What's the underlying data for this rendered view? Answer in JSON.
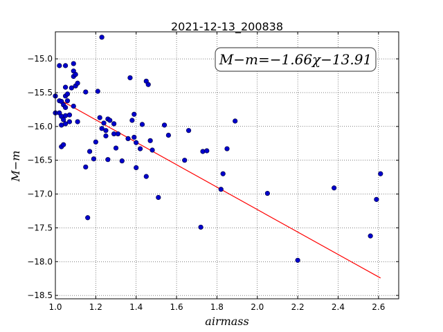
{
  "chart_data": {
    "type": "scatter",
    "title": "2021-12-13_200838",
    "xlabel": "airmass",
    "ylabel": "M−m",
    "xlim": [
      1.0,
      2.7
    ],
    "ylim": [
      -18.55,
      -14.6
    ],
    "xticks": [
      "1.0",
      "1.2",
      "1.4",
      "1.6",
      "1.8",
      "2.0",
      "2.2",
      "2.4",
      "2.6"
    ],
    "yticks": [
      "−15.0",
      "−15.5",
      "−16.0",
      "−16.5",
      "−17.0",
      "−17.5",
      "−18.0",
      "−18.5"
    ],
    "ytick_values": [
      -15.0,
      -15.5,
      -16.0,
      -16.5,
      -17.0,
      -17.5,
      -18.0,
      -18.5
    ],
    "xtick_values": [
      1.0,
      1.2,
      1.4,
      1.6,
      1.8,
      2.0,
      2.2,
      2.4,
      2.6
    ],
    "grid": true,
    "annotation": "M−m=−1.66χ−13.91",
    "fit": {
      "slope": -1.66,
      "intercept": -13.91,
      "x_range": [
        1.02,
        2.61
      ],
      "color": "#ff0000"
    },
    "marker_color": "#0000cc",
    "points": [
      [
        1.0,
        -15.55
      ],
      [
        1.0,
        -15.8
      ],
      [
        1.02,
        -15.62
      ],
      [
        1.02,
        -15.1
      ],
      [
        1.02,
        -15.8
      ],
      [
        1.03,
        -15.63
      ],
      [
        1.03,
        -15.85
      ],
      [
        1.03,
        -15.98
      ],
      [
        1.03,
        -16.3
      ],
      [
        1.04,
        -15.68
      ],
      [
        1.04,
        -15.9
      ],
      [
        1.04,
        -16.27
      ],
      [
        1.05,
        -15.1
      ],
      [
        1.05,
        -15.42
      ],
      [
        1.05,
        -15.55
      ],
      [
        1.05,
        -15.72
      ],
      [
        1.05,
        -15.84
      ],
      [
        1.05,
        -15.96
      ],
      [
        1.06,
        -15.52
      ],
      [
        1.06,
        -15.62
      ],
      [
        1.07,
        -15.83
      ],
      [
        1.07,
        -15.93
      ],
      [
        1.08,
        -15.43
      ],
      [
        1.09,
        -15.07
      ],
      [
        1.09,
        -15.18
      ],
      [
        1.09,
        -15.26
      ],
      [
        1.09,
        -15.7
      ],
      [
        1.1,
        -15.23
      ],
      [
        1.1,
        -15.4
      ],
      [
        1.11,
        -15.36
      ],
      [
        1.11,
        -15.93
      ],
      [
        1.15,
        -15.49
      ],
      [
        1.15,
        -16.6
      ],
      [
        1.16,
        -17.35
      ],
      [
        1.17,
        -16.37
      ],
      [
        1.19,
        -16.48
      ],
      [
        1.2,
        -16.23
      ],
      [
        1.21,
        -15.48
      ],
      [
        1.22,
        -15.87
      ],
      [
        1.23,
        -14.68
      ],
      [
        1.23,
        -16.03
      ],
      [
        1.24,
        -15.95
      ],
      [
        1.25,
        -16.06
      ],
      [
        1.25,
        -16.14
      ],
      [
        1.26,
        -16.49
      ],
      [
        1.26,
        -15.89
      ],
      [
        1.27,
        -15.91
      ],
      [
        1.29,
        -16.11
      ],
      [
        1.29,
        -15.96
      ],
      [
        1.3,
        -16.32
      ],
      [
        1.31,
        -16.11
      ],
      [
        1.33,
        -16.51
      ],
      [
        1.36,
        -16.18
      ],
      [
        1.37,
        -15.28
      ],
      [
        1.38,
        -15.91
      ],
      [
        1.39,
        -15.82
      ],
      [
        1.39,
        -16.16
      ],
      [
        1.4,
        -16.24
      ],
      [
        1.4,
        -16.61
      ],
      [
        1.42,
        -16.33
      ],
      [
        1.43,
        -15.97
      ],
      [
        1.45,
        -16.74
      ],
      [
        1.45,
        -15.33
      ],
      [
        1.46,
        -15.38
      ],
      [
        1.47,
        -16.21
      ],
      [
        1.48,
        -16.35
      ],
      [
        1.51,
        -17.05
      ],
      [
        1.54,
        -15.98
      ],
      [
        1.56,
        -16.13
      ],
      [
        1.64,
        -16.5
      ],
      [
        1.66,
        -16.06
      ],
      [
        1.72,
        -17.49
      ],
      [
        1.73,
        -16.37
      ],
      [
        1.75,
        -16.36
      ],
      [
        1.82,
        -16.93
      ],
      [
        1.83,
        -16.7
      ],
      [
        1.85,
        -16.33
      ],
      [
        1.89,
        -15.92
      ],
      [
        2.05,
        -16.99
      ],
      [
        2.2,
        -17.98
      ],
      [
        2.38,
        -16.91
      ],
      [
        2.56,
        -17.62
      ],
      [
        2.59,
        -17.08
      ],
      [
        2.61,
        -16.7
      ]
    ]
  }
}
